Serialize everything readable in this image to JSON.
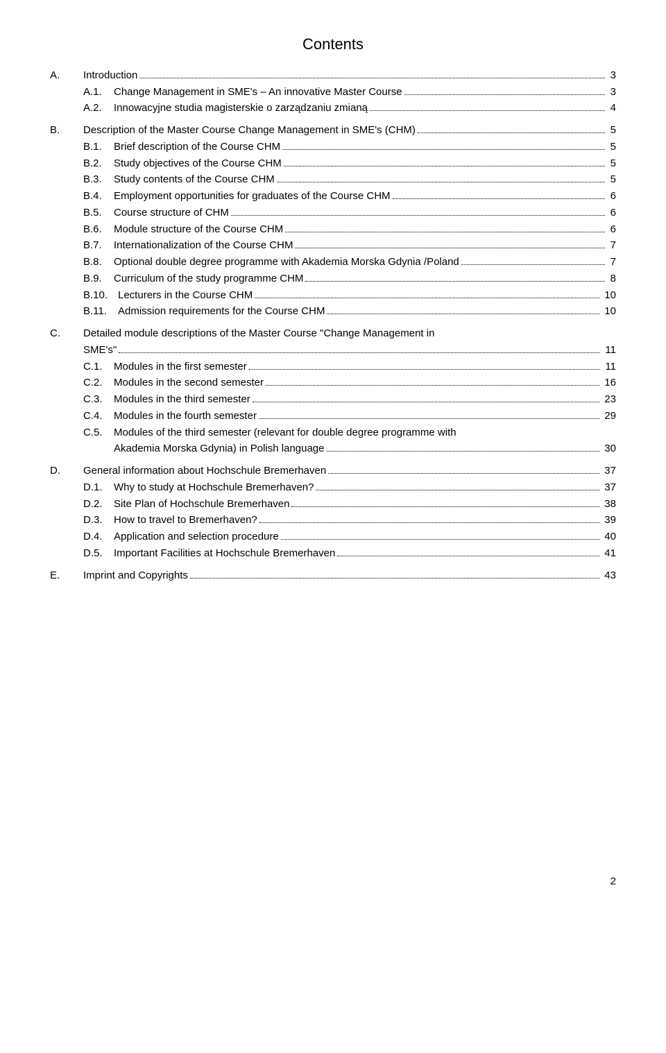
{
  "title": "Contents",
  "footer_page": "2",
  "entries": [
    {
      "cls": "lvl-a",
      "num": "A.",
      "text": "Introduction",
      "page": "3",
      "numw": 48
    },
    {
      "cls": "lvl-a2",
      "num": "A.1.",
      "text": "Change Management in SME's – An innovative Master Course",
      "page": "3",
      "numw": 44
    },
    {
      "cls": "lvl-a2",
      "num": "A.2.",
      "text": "Innowacyjne studia magisterskie o zarządzaniu zmianą",
      "page": "4",
      "numw": 44
    },
    {
      "cls": "lvl-b",
      "num": "B.",
      "text": "Description of the Master Course Change Management in SME's (CHM)",
      "page": "5",
      "numw": 48
    },
    {
      "cls": "lvl-b2",
      "num": "B.1.",
      "text": "Brief description of the Course CHM",
      "page": "5",
      "numw": 44
    },
    {
      "cls": "lvl-b2",
      "num": "B.2.",
      "text": "Study objectives of the Course CHM",
      "page": "5",
      "numw": 44
    },
    {
      "cls": "lvl-b2",
      "num": "B.3.",
      "text": "Study contents of the Course CHM",
      "page": "5",
      "numw": 44
    },
    {
      "cls": "lvl-b2",
      "num": "B.4.",
      "text": "Employment opportunities for graduates of the Course CHM",
      "page": "6",
      "numw": 44
    },
    {
      "cls": "lvl-b2",
      "num": "B.5.",
      "text": "Course structure of CHM",
      "page": "6",
      "numw": 44
    },
    {
      "cls": "lvl-b2",
      "num": "B.6.",
      "text": "Module structure of the Course CHM",
      "page": "6",
      "numw": 44
    },
    {
      "cls": "lvl-b2",
      "num": "B.7.",
      "text": "Internationalization of the Course CHM",
      "page": "7",
      "numw": 44
    },
    {
      "cls": "lvl-b2",
      "num": "B.8.",
      "text": "Optional double degree programme with Akademia Morska Gdynia /Poland",
      "page": "7",
      "numw": 44
    },
    {
      "cls": "lvl-b2",
      "num": "B.9.",
      "text": "Curriculum of the study programme CHM",
      "page": "8",
      "numw": 44
    },
    {
      "cls": "lvl-b2",
      "num": "B.10.",
      "text": "Lecturers in the Course CHM",
      "page": "10",
      "numw": 50
    },
    {
      "cls": "lvl-b2",
      "num": "B.11.",
      "text": "Admission requirements for the Course CHM",
      "page": "10",
      "numw": 50
    },
    {
      "cls": "lvl-c",
      "num": "C.",
      "text": "Detailed module descriptions of the Master Course \"Change Management in SME's\"",
      "page": "11",
      "numw": 48,
      "justify": true,
      "wrap": true
    },
    {
      "cls": "lvl-c2",
      "num": "C.1.",
      "text": "Modules in the first semester",
      "page": "11",
      "numw": 44
    },
    {
      "cls": "lvl-c2",
      "num": "C.2.",
      "text": "Modules in the second semester",
      "page": "16",
      "numw": 44
    },
    {
      "cls": "lvl-c2",
      "num": "C.3.",
      "text": "Modules in the third semester",
      "page": "23",
      "numw": 44
    },
    {
      "cls": "lvl-c2",
      "num": "C.4.",
      "text": "Modules in the fourth semester",
      "page": "29",
      "numw": 44
    },
    {
      "cls": "lvl-c2",
      "num": "C.5.",
      "text": "Modules of the third semester (relevant for double degree programme with Akademia Morska Gdynia) in Polish language",
      "page": "30",
      "numw": 44,
      "wrap": true
    },
    {
      "cls": "lvl-d",
      "num": "D.",
      "text": "General information about Hochschule Bremerhaven",
      "page": "37",
      "numw": 48
    },
    {
      "cls": "lvl-d2",
      "num": "D.1.",
      "text": "Why to study at Hochschule Bremerhaven?",
      "page": "37",
      "numw": 44
    },
    {
      "cls": "lvl-d2",
      "num": "D.2.",
      "text": "Site Plan of Hochschule Bremerhaven",
      "page": "38",
      "numw": 44
    },
    {
      "cls": "lvl-d2",
      "num": "D.3.",
      "text": "How to travel to Bremerhaven?",
      "page": "39",
      "numw": 44
    },
    {
      "cls": "lvl-d2",
      "num": "D.4.",
      "text": "Application and selection procedure",
      "page": "40",
      "numw": 44
    },
    {
      "cls": "lvl-d2",
      "num": "D.5.",
      "text": "Important Facilities at Hochschule Bremerhaven",
      "page": "41",
      "numw": 44
    },
    {
      "cls": "lvl-e",
      "num": "E.",
      "text": "Imprint and Copyrights",
      "page": "43",
      "numw": 48
    }
  ]
}
